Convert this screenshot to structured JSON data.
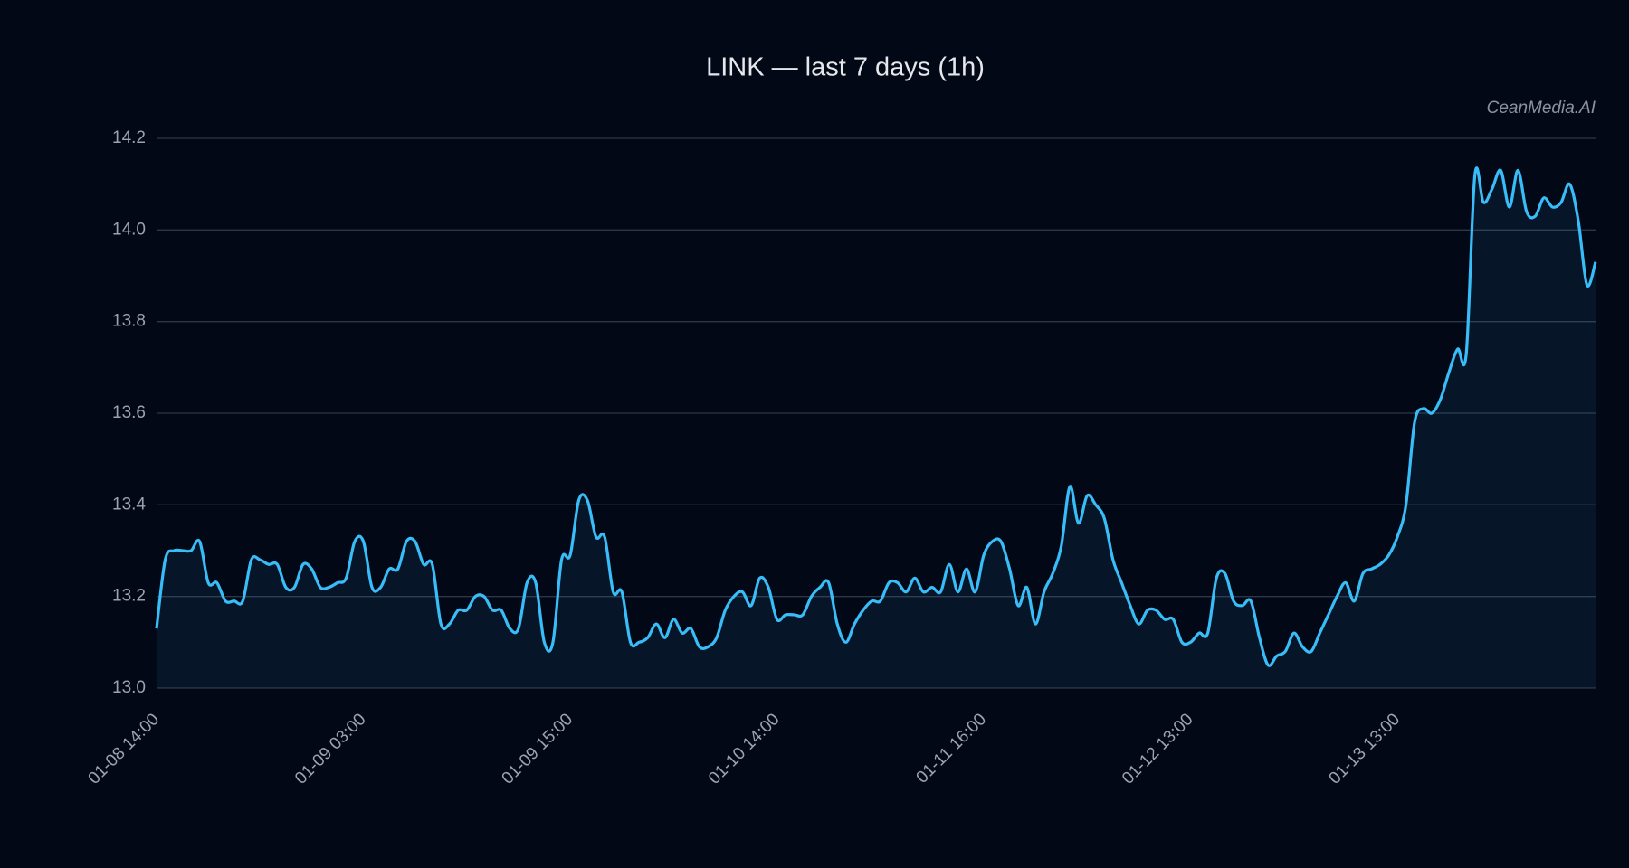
{
  "chart_data": {
    "type": "line",
    "title": "LINK — last 7 days (1h)",
    "watermark": "CeanMedia.AI",
    "categories": [
      "01-08 14:00",
      null,
      null,
      null,
      null,
      null,
      null,
      null,
      null,
      null,
      null,
      null,
      null,
      null,
      null,
      null,
      null,
      null,
      null,
      null,
      null,
      null,
      null,
      null,
      "01-09 03:00",
      null,
      null,
      null,
      null,
      null,
      null,
      null,
      null,
      null,
      null,
      null,
      null,
      null,
      null,
      null,
      null,
      null,
      null,
      null,
      null,
      null,
      null,
      null,
      "01-09 15:00",
      null,
      null,
      null,
      null,
      null,
      null,
      null,
      null,
      null,
      null,
      null,
      null,
      null,
      null,
      null,
      null,
      null,
      null,
      null,
      null,
      null,
      null,
      null,
      "01-10 14:00",
      null,
      null,
      null,
      null,
      null,
      null,
      null,
      null,
      null,
      null,
      null,
      null,
      null,
      null,
      null,
      null,
      null,
      null,
      null,
      null,
      null,
      null,
      null,
      "01-11 16:00",
      null,
      null,
      null,
      null,
      null,
      null,
      null,
      null,
      null,
      null,
      null,
      null,
      null,
      null,
      null,
      null,
      null,
      null,
      null,
      null,
      null,
      null,
      null,
      "01-12 13:00",
      null,
      null,
      null,
      null,
      null,
      null,
      null,
      null,
      null,
      null,
      null,
      null,
      null,
      null,
      null,
      null,
      null,
      null,
      null,
      null,
      null,
      null,
      null,
      "01-13 13:00",
      null,
      null,
      null,
      null,
      null,
      null,
      null,
      null,
      null,
      null,
      null,
      null,
      null,
      null,
      null,
      null,
      null,
      null,
      null,
      null,
      null,
      null,
      null
    ],
    "series": [
      {
        "color": "#38bdf8",
        "area": true,
        "values": [
          13.13,
          13.28,
          13.3,
          13.3,
          13.3,
          13.32,
          13.23,
          13.23,
          13.19,
          13.19,
          13.19,
          13.28,
          13.28,
          13.27,
          13.27,
          13.22,
          13.22,
          13.27,
          13.26,
          13.22,
          13.22,
          13.23,
          13.24,
          13.32,
          13.32,
          13.22,
          13.22,
          13.26,
          13.26,
          13.32,
          13.32,
          13.27,
          13.27,
          13.14,
          13.14,
          13.17,
          13.17,
          13.2,
          13.2,
          13.17,
          13.17,
          13.13,
          13.13,
          13.23,
          13.23,
          13.1,
          13.1,
          13.28,
          13.29,
          13.41,
          13.41,
          13.33,
          13.33,
          13.21,
          13.21,
          13.1,
          13.1,
          13.11,
          13.14,
          13.11,
          13.15,
          13.12,
          13.13,
          13.09,
          13.09,
          13.11,
          13.17,
          13.2,
          13.21,
          13.18,
          13.24,
          13.22,
          13.15,
          13.16,
          13.16,
          13.16,
          13.2,
          13.22,
          13.23,
          13.14,
          13.1,
          13.14,
          13.17,
          13.19,
          13.19,
          13.23,
          13.23,
          13.21,
          13.24,
          13.21,
          13.22,
          13.21,
          13.27,
          13.21,
          13.26,
          13.21,
          13.29,
          13.32,
          13.32,
          13.26,
          13.18,
          13.22,
          13.14,
          13.21,
          13.25,
          13.31,
          13.44,
          13.36,
          13.42,
          13.4,
          13.37,
          13.28,
          13.23,
          13.18,
          13.14,
          13.17,
          13.17,
          13.15,
          13.15,
          13.1,
          13.1,
          13.12,
          13.12,
          13.24,
          13.25,
          13.19,
          13.18,
          13.19,
          13.11,
          13.05,
          13.07,
          13.08,
          13.12,
          13.09,
          13.08,
          13.12,
          13.16,
          13.2,
          13.23,
          13.19,
          13.25,
          13.26,
          13.27,
          13.29,
          13.33,
          13.4,
          13.58,
          13.61,
          13.6,
          13.63,
          13.69,
          13.74,
          13.73,
          14.12,
          14.06,
          14.09,
          14.13,
          14.05,
          14.13,
          14.04,
          14.03,
          14.07,
          14.05,
          14.06,
          14.1,
          14.02,
          13.88,
          13.93
        ]
      }
    ],
    "ylim": [
      13.0,
      14.2
    ],
    "yticks": [
      {
        "value": 13,
        "label": "13.0"
      },
      13.2,
      13.4,
      13.6,
      13.8,
      {
        "value": 14,
        "label": "14.0"
      },
      14.2
    ],
    "grid": true
  }
}
